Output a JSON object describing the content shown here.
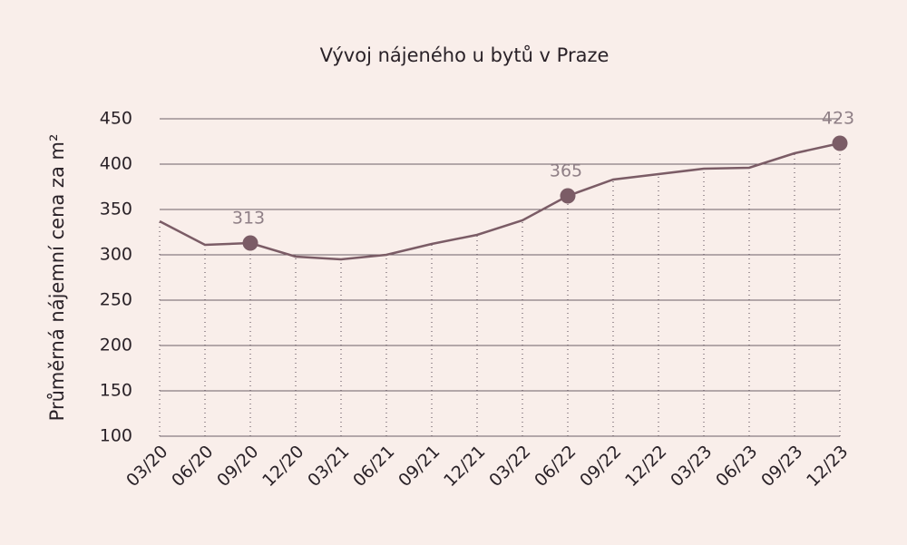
{
  "chart_data": {
    "type": "line",
    "title": "Vývoj nájeného u bytů v Praze",
    "y_label": "Průměrná nájemní cena za m²",
    "categories": [
      "03/20",
      "06/20",
      "09/20",
      "12/20",
      "03/21",
      "06/21",
      "09/21",
      "12/21",
      "03/22",
      "06/22",
      "09/22",
      "12/22",
      "03/23",
      "06/23",
      "09/23",
      "12/23"
    ],
    "series": [
      {
        "name": "Průměrná nájemní cena za m²",
        "color": "#7b5c66",
        "values": [
          337,
          311,
          313,
          298,
          295,
          300,
          312,
          322,
          338,
          365,
          383,
          389,
          395,
          396,
          412,
          423
        ],
        "value_labels": [
          null,
          null,
          "313",
          null,
          null,
          null,
          null,
          null,
          null,
          "365",
          null,
          null,
          null,
          null,
          null,
          "423"
        ]
      }
    ],
    "ylim": [
      100,
      450
    ],
    "yticks": [
      100,
      150,
      200,
      250,
      300,
      350,
      400,
      450
    ],
    "grid": true
  }
}
